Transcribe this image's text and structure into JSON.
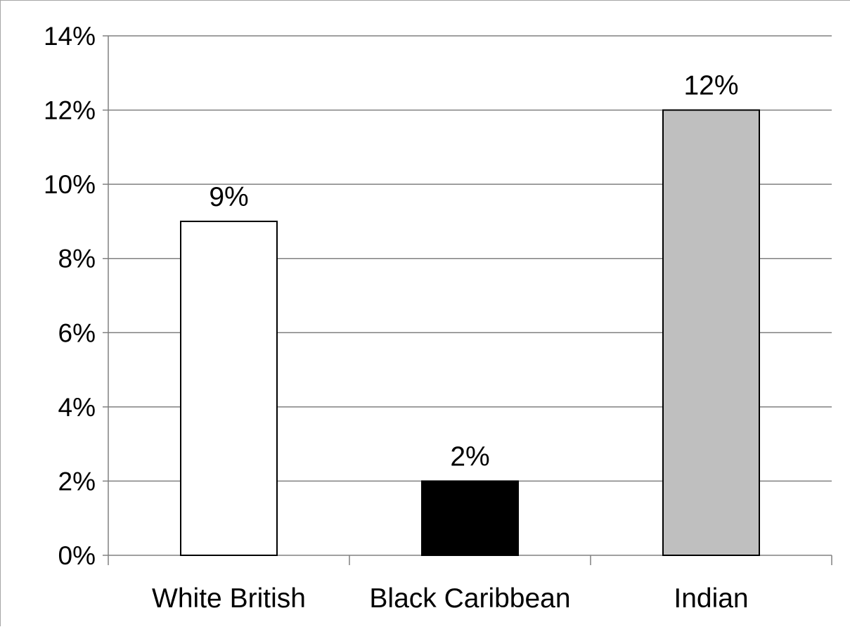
{
  "chart_data": {
    "type": "bar",
    "title": "",
    "xlabel": "",
    "ylabel": "",
    "categories": [
      "White British",
      "Black Caribbean",
      "Indian"
    ],
    "values": [
      9,
      2,
      12
    ],
    "data_labels": [
      "9%",
      "2%",
      "12%"
    ],
    "bar_colors": [
      "#ffffff",
      "#000000",
      "#bfbfbf"
    ],
    "bar_outline_color": "#000000",
    "ylim": [
      0,
      14
    ],
    "y_ticks": [
      0,
      2,
      4,
      6,
      8,
      10,
      12,
      14
    ],
    "y_tick_labels": [
      "0%",
      "2%",
      "4%",
      "6%",
      "8%",
      "10%",
      "12%",
      "14%"
    ],
    "grid": true,
    "grid_color": "#808080",
    "legend": "none"
  }
}
